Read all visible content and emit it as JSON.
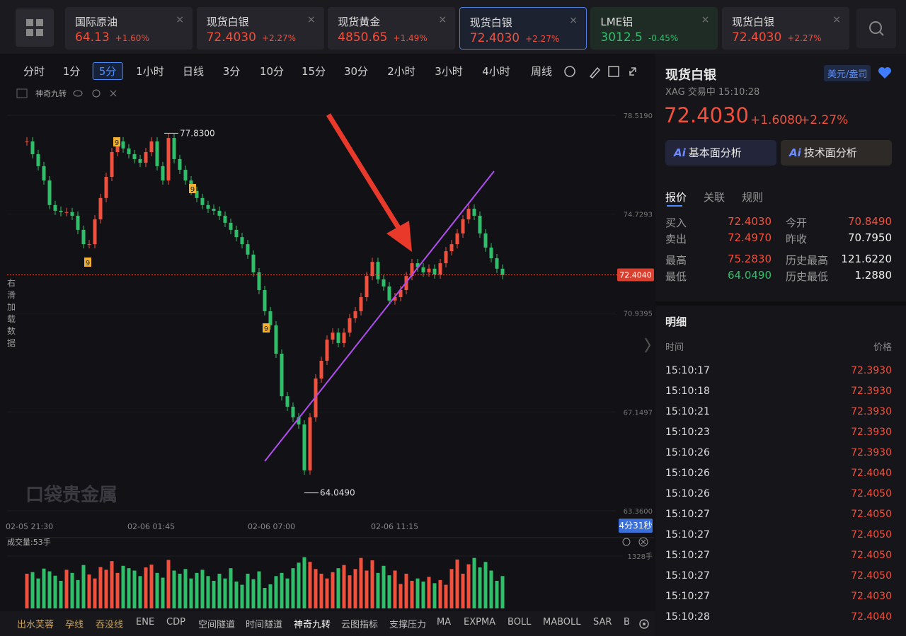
{
  "tabs": [
    {
      "name": "国际原油",
      "price": "64.13",
      "change": "+1.60%",
      "color": "#f0503c"
    },
    {
      "name": "现货白银",
      "price": "72.4030",
      "change": "+2.27%",
      "color": "#f0503c"
    },
    {
      "name": "现货黄金",
      "price": "4850.65",
      "change": "+1.49%",
      "color": "#f0503c"
    },
    {
      "name": "现货白银",
      "price": "72.4030",
      "change": "+2.27%",
      "color": "#f0503c",
      "selected": true
    },
    {
      "name": "LME铝",
      "price": "3012.5",
      "change": "-0.45%",
      "color": "#2fbf6b"
    },
    {
      "name": "现货白银",
      "price": "72.4030",
      "change": "+2.27%",
      "color": "#f0503c"
    }
  ],
  "toolbar": [
    "分时",
    "1分",
    "5分",
    "1小时",
    "日线",
    "3分",
    "10分",
    "15分",
    "30分",
    "2小时",
    "3小时",
    "4小时",
    "周线"
  ],
  "toolbar_selected": 2,
  "indicator_label": "神奇九转",
  "chart_data": {
    "type": "candlestick",
    "up_color": "#f0503c",
    "down_color": "#2fbf6b",
    "closes": [
      77.52,
      77.03,
      76.57,
      76.02,
      75.08,
      74.86,
      74.81,
      74.81,
      74.67,
      74.13,
      73.58,
      73.58,
      74.53,
      75.35,
      76.16,
      77.11,
      77.52,
      77.25,
      77.03,
      76.84,
      76.7,
      77.11,
      77.52,
      76.57,
      76.02,
      77.65,
      76.84,
      76.43,
      76.02,
      75.62,
      75.35,
      75.08,
      74.94,
      74.86,
      74.67,
      74.4,
      74.13,
      73.85,
      73.58,
      73.18,
      72.5,
      71.82,
      71.01,
      70.47,
      69.38,
      67.75,
      67.35,
      66.94,
      66.67,
      64.91,
      66.94,
      68.43,
      69.11,
      69.92,
      70.19,
      69.79,
      70.19,
      70.74,
      71.01,
      71.55,
      72.36,
      72.9,
      72.23,
      71.96,
      71.42,
      71.55,
      71.82,
      72.36,
      72.85,
      72.69,
      72.5,
      72.64,
      72.42,
      72.85,
      73.31,
      73.58,
      73.99,
      74.53,
      74.94,
      74.67,
      73.99,
      73.45,
      73.04,
      72.64,
      72.4
    ],
    "ylim": [
      63.36,
      78.519
    ],
    "yticks": [
      {
        "value": 78.519,
        "label": "78.5190"
      },
      {
        "value": 74.7293,
        "label": "74.7293"
      },
      {
        "value": 70.9395,
        "label": "70.9395"
      },
      {
        "value": 67.1497,
        "label": "67.1497"
      },
      {
        "value": 63.36,
        "label": "63.3600"
      }
    ],
    "last_price": {
      "value": 72.404,
      "label": "72.4040"
    },
    "high": {
      "value": 77.83,
      "label": "77.8300"
    },
    "low": {
      "value": 64.049,
      "label": "64.0490"
    },
    "xtick_labels": [
      "02-05 21:30",
      "02-06 01:45",
      "02-06 07:00",
      "02-06 11:15"
    ],
    "td_labels": [
      "9",
      "9",
      "9",
      "9"
    ],
    "countdown": "4分31秒",
    "side_text": "右滑加载数据",
    "watermark": "口袋贵金属"
  },
  "volume": {
    "title": "成交量:53手",
    "ylim": [
      0,
      1328
    ],
    "yticks": [
      {
        "value": 1328,
        "label": "1328手"
      }
    ],
    "values": [
      880,
      920,
      760,
      1010,
      940,
      830,
      700,
      980,
      900,
      720,
      1100,
      860,
      760,
      1050,
      980,
      1200,
      900,
      1080,
      1020,
      960,
      820,
      1040,
      1110,
      900,
      780,
      1230,
      960,
      880,
      1000,
      760,
      900,
      980,
      820,
      700,
      880,
      760,
      1020,
      680,
      600,
      880,
      740,
      940,
      520,
      610,
      820,
      900,
      760,
      1020,
      1160,
      1300,
      1180,
      1000,
      880,
      760,
      920,
      1020,
      1100,
      840,
      1000,
      1280,
      960,
      1220,
      900,
      1080,
      840,
      960,
      620,
      880,
      700,
      760,
      680,
      800,
      640,
      720,
      600,
      1000,
      1240,
      880,
      1120,
      1280,
      1040,
      1180,
      960,
      700,
      820
    ]
  },
  "indicator_bar": [
    "出水芙蓉",
    "孕线",
    "吞没线",
    "ENE",
    "CDP",
    "空间隧道",
    "时间隧道",
    "神奇九转",
    "云图指标",
    "支撑压力",
    "MA",
    "EXPMA",
    "BOLL",
    "MABOLL",
    "SAR",
    "B"
  ],
  "quote": {
    "name": "现货白银",
    "unit": "美元/盎司",
    "status": "XAG 交易中 15:10:28",
    "price": "72.4030",
    "change": "+1.6080",
    "pct": "+2.27%",
    "ai_label": "Ai",
    "buttons": [
      "基本面分析",
      "技术面分析"
    ],
    "tabs": [
      "报价",
      "关联",
      "规则"
    ],
    "rows": [
      [
        "买入",
        "72.4030",
        "今开",
        "70.8490"
      ],
      [
        "卖出",
        "72.4970",
        "昨收",
        "70.7950"
      ],
      [
        "最高",
        "75.2830",
        "历史最高",
        "121.6220"
      ],
      [
        "最低",
        "64.0490",
        "历史最低",
        "1.2880"
      ]
    ]
  },
  "detail": {
    "title": "明细",
    "headers": [
      "时间",
      "价格"
    ],
    "rows": [
      [
        "15:10:17",
        "72.3930"
      ],
      [
        "15:10:18",
        "72.3930"
      ],
      [
        "15:10:21",
        "72.3930"
      ],
      [
        "15:10:23",
        "72.3930"
      ],
      [
        "15:10:26",
        "72.3930"
      ],
      [
        "15:10:26",
        "72.4040"
      ],
      [
        "15:10:26",
        "72.4050"
      ],
      [
        "15:10:27",
        "72.4050"
      ],
      [
        "15:10:27",
        "72.4050"
      ],
      [
        "15:10:27",
        "72.4050"
      ],
      [
        "15:10:27",
        "72.4050"
      ],
      [
        "15:10:27",
        "72.4030"
      ],
      [
        "15:10:28",
        "72.4040"
      ]
    ]
  }
}
